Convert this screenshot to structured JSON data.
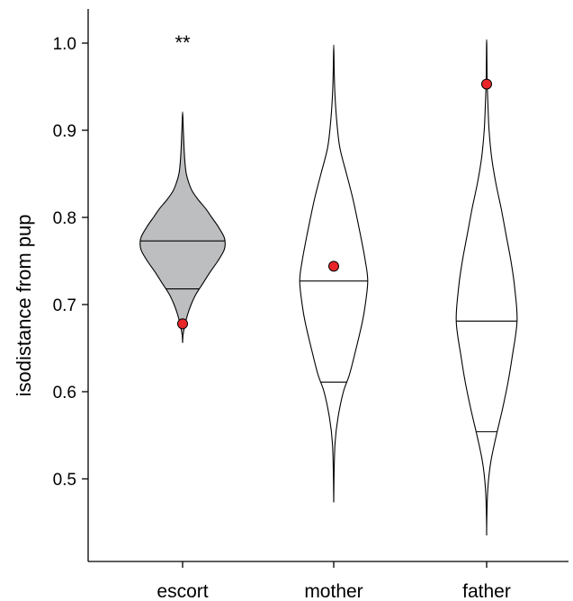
{
  "chart_data": {
    "type": "violin",
    "title": "",
    "xlabel": "",
    "ylabel": "isodistance from pup",
    "ylim": [
      0.4,
      1.03
    ],
    "yticks": [
      0.5,
      0.6,
      0.7,
      0.8,
      0.9,
      1.0
    ],
    "ytick_labels": [
      "0.5",
      "0.6",
      "0.7",
      "0.8",
      "0.9",
      "1.0"
    ],
    "categories": [
      "escort",
      "mother",
      "father"
    ],
    "grid": false,
    "colors": {
      "escort_fill": "#bcbec0",
      "other_fill": "#ffffff",
      "point": "#e8262a",
      "line": "#000000"
    },
    "violins": [
      {
        "category": "escort",
        "filled": true,
        "median": 0.773,
        "lower_line": 0.718,
        "observed": 0.678,
        "annotation": "**",
        "profile": [
          [
            0.656,
            0.0
          ],
          [
            0.665,
            0.5
          ],
          [
            0.675,
            2.2
          ],
          [
            0.688,
            5.4
          ],
          [
            0.7,
            9.5
          ],
          [
            0.712,
            14.9
          ],
          [
            0.725,
            23.0
          ],
          [
            0.738,
            31.1
          ],
          [
            0.75,
            39.2
          ],
          [
            0.762,
            45.9
          ],
          [
            0.77,
            47.3
          ],
          [
            0.778,
            45.9
          ],
          [
            0.79,
            39.2
          ],
          [
            0.8,
            32.4
          ],
          [
            0.81,
            25.7
          ],
          [
            0.82,
            17.6
          ],
          [
            0.83,
            10.8
          ],
          [
            0.84,
            6.8
          ],
          [
            0.85,
            4.1
          ],
          [
            0.862,
            2.7
          ],
          [
            0.88,
            1.6
          ],
          [
            0.9,
            0.8
          ],
          [
            0.921,
            0.0
          ]
        ]
      },
      {
        "category": "mother",
        "filled": false,
        "median": 0.727,
        "lower_line": 0.611,
        "observed": 0.744,
        "annotation": "",
        "profile": [
          [
            0.473,
            0.0
          ],
          [
            0.5,
            0.3
          ],
          [
            0.54,
            1.4
          ],
          [
            0.57,
            4.7
          ],
          [
            0.6,
            10.8
          ],
          [
            0.62,
            17.6
          ],
          [
            0.65,
            25.0
          ],
          [
            0.68,
            31.8
          ],
          [
            0.7,
            35.1
          ],
          [
            0.727,
            37.8
          ],
          [
            0.75,
            35.1
          ],
          [
            0.78,
            29.7
          ],
          [
            0.82,
            21.6
          ],
          [
            0.85,
            14.2
          ],
          [
            0.88,
            6.8
          ],
          [
            0.91,
            3.4
          ],
          [
            0.94,
            1.4
          ],
          [
            0.97,
            0.5
          ],
          [
            0.998,
            0.0
          ]
        ]
      },
      {
        "category": "father",
        "filled": false,
        "median": 0.681,
        "lower_line": 0.554,
        "observed": 0.953,
        "annotation": "",
        "profile": [
          [
            0.435,
            0.0
          ],
          [
            0.46,
            0.3
          ],
          [
            0.49,
            1.4
          ],
          [
            0.52,
            4.7
          ],
          [
            0.55,
            10.8
          ],
          [
            0.58,
            17.6
          ],
          [
            0.61,
            23.6
          ],
          [
            0.64,
            28.4
          ],
          [
            0.681,
            33.8
          ],
          [
            0.72,
            31.1
          ],
          [
            0.75,
            27.0
          ],
          [
            0.78,
            21.6
          ],
          [
            0.81,
            16.2
          ],
          [
            0.84,
            10.1
          ],
          [
            0.87,
            5.4
          ],
          [
            0.9,
            2.7
          ],
          [
            0.93,
            1.4
          ],
          [
            0.96,
            0.5
          ],
          [
            1.004,
            0.0
          ]
        ]
      }
    ]
  }
}
